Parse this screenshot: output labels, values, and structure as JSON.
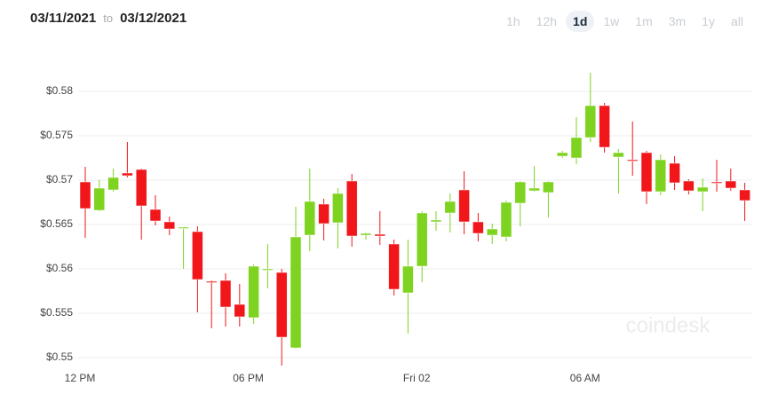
{
  "header": {
    "from": "03/11/2021",
    "to_word": "to",
    "to": "03/12/2021",
    "ranges": [
      "1h",
      "12h",
      "1d",
      "1w",
      "1m",
      "3m",
      "1y",
      "all"
    ],
    "active_range": "1d"
  },
  "watermark": "coindesk",
  "chart_data": {
    "type": "candlestick",
    "categories": [
      "12 PM",
      null,
      null,
      null,
      null,
      null,
      null,
      null,
      null,
      null,
      null,
      null,
      "06 PM",
      null,
      null,
      null,
      null,
      null,
      null,
      null,
      null,
      null,
      null,
      null,
      "Fri 02",
      null,
      null,
      null,
      null,
      null,
      null,
      null,
      null,
      null,
      null,
      null,
      "06 AM",
      null,
      null,
      null,
      null,
      null,
      null,
      null,
      null,
      null,
      null,
      null
    ],
    "open": [
      0.5698,
      0.5666,
      0.5689,
      0.5708,
      0.5712,
      0.5667,
      0.5653,
      0.5646,
      0.5642,
      0.5586,
      0.5587,
      0.556,
      0.5545,
      0.5599,
      0.5596,
      0.5511,
      0.5638,
      0.5673,
      0.5652,
      0.5699,
      0.5638,
      0.5639,
      0.5628,
      0.5573,
      0.5603,
      0.5653,
      0.5663,
      0.5689,
      0.5653,
      0.5638,
      0.5636,
      0.5674,
      0.5688,
      0.5686,
      0.5727,
      0.5725,
      0.5748,
      0.5784,
      0.5726,
      0.5723,
      0.5731,
      0.5687,
      0.5719,
      0.5699,
      0.5687,
      0.5698,
      0.5699,
      0.5689
    ],
    "high": [
      0.5715,
      0.57,
      0.5713,
      0.5743,
      0.5713,
      0.5683,
      0.5659,
      0.5647,
      0.5648,
      0.5587,
      0.5595,
      0.5583,
      0.5605,
      0.5628,
      0.56,
      0.567,
      0.5713,
      0.5679,
      0.5691,
      0.5707,
      0.5641,
      0.5665,
      0.5633,
      0.5633,
      0.5665,
      0.5665,
      0.5685,
      0.571,
      0.5663,
      0.5651,
      0.5677,
      0.5699,
      0.5716,
      0.5699,
      0.5733,
      0.5771,
      0.5821,
      0.5787,
      0.5735,
      0.5766,
      0.5733,
      0.5729,
      0.5727,
      0.5701,
      0.5702,
      0.5723,
      0.5713,
      0.5697
    ],
    "low": [
      0.5635,
      0.5665,
      0.5687,
      0.5703,
      0.5633,
      0.5649,
      0.5638,
      0.56,
      0.5551,
      0.5533,
      0.5535,
      0.5535,
      0.5538,
      0.5578,
      0.5491,
      0.551,
      0.562,
      0.5632,
      0.5623,
      0.5625,
      0.5633,
      0.5627,
      0.557,
      0.5527,
      0.5585,
      0.5643,
      0.5641,
      0.5639,
      0.5631,
      0.5628,
      0.5631,
      0.5648,
      0.5687,
      0.5658,
      0.5725,
      0.5718,
      0.5743,
      0.5731,
      0.5685,
      0.5705,
      0.5673,
      0.5683,
      0.5689,
      0.5684,
      0.5665,
      0.5687,
      0.5688,
      0.5654
    ],
    "close": [
      0.5668,
      0.5691,
      0.5703,
      0.5705,
      0.5671,
      0.5654,
      0.5645,
      0.5647,
      0.5588,
      0.5585,
      0.5557,
      0.5546,
      0.5603,
      0.56,
      0.5523,
      0.5636,
      0.5676,
      0.5651,
      0.5685,
      0.5637,
      0.564,
      0.5637,
      0.5577,
      0.5603,
      0.5663,
      0.5655,
      0.5676,
      0.5653,
      0.564,
      0.5645,
      0.5675,
      0.5698,
      0.5691,
      0.5698,
      0.5731,
      0.5748,
      0.5784,
      0.5737,
      0.5731,
      0.5722,
      0.5687,
      0.5723,
      0.5697,
      0.5688,
      0.5692,
      0.5697,
      0.5691,
      0.5677
    ],
    "up_color": "#7ed321",
    "down_color": "#f0161a",
    "ylim": [
      0.549,
      0.583
    ],
    "yticks": [
      {
        "value": 0.55,
        "label": "$0.55"
      },
      {
        "value": 0.555,
        "label": "$0.555"
      },
      {
        "value": 0.56,
        "label": "$0.56"
      },
      {
        "value": 0.565,
        "label": "$0.565"
      },
      {
        "value": 0.57,
        "label": "$0.57"
      },
      {
        "value": 0.575,
        "label": "$0.575"
      },
      {
        "value": 0.58,
        "label": "$0.58"
      }
    ],
    "grid": true
  }
}
